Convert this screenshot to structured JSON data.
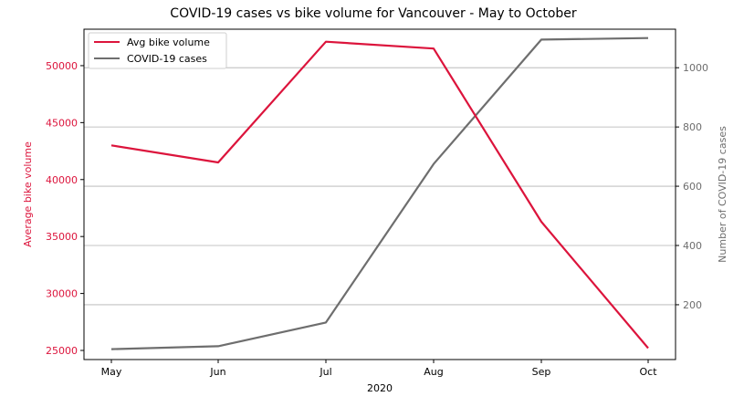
{
  "chart_data": {
    "type": "line",
    "title": "COVID-19 cases vs bike volume for Vancouver - May to October",
    "xlabel": "2020",
    "categories": [
      "May",
      "Jun",
      "Jul",
      "Aug",
      "Sep",
      "Oct"
    ],
    "y_left": {
      "label": "Average bike volume",
      "color": "#dc143c",
      "ylim": [
        24200,
        53200
      ],
      "ticks": [
        25000,
        30000,
        35000,
        40000,
        45000,
        50000
      ]
    },
    "y_right": {
      "label": "Number of COVID-19 cases",
      "color": "#6e6e6e",
      "ylim": [
        15,
        1130
      ],
      "ticks": [
        200,
        400,
        600,
        800,
        1000
      ]
    },
    "series": [
      {
        "name": "Avg bike volume",
        "axis": "left",
        "color": "#dc143c",
        "values": [
          43000,
          41500,
          52100,
          51500,
          36300,
          25200
        ]
      },
      {
        "name": "COVID-19 cases",
        "axis": "right",
        "color": "#6e6e6e",
        "values": [
          50,
          60,
          140,
          675,
          1095,
          1100
        ]
      }
    ],
    "grid": "horizontal (right axis ticks)",
    "legend_position": "top-left"
  }
}
